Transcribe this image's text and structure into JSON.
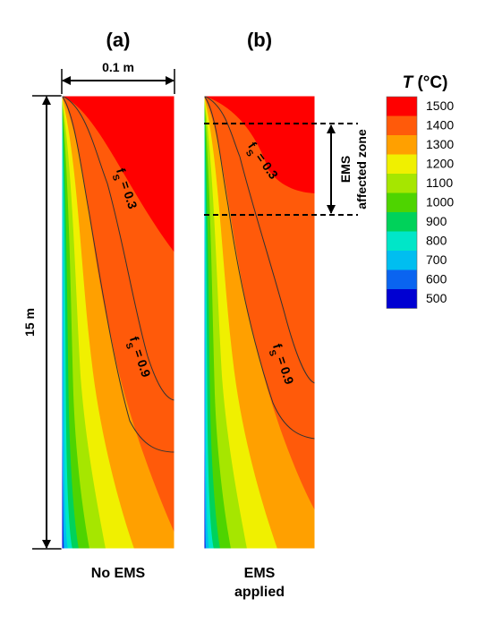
{
  "panels": [
    {
      "id": "a",
      "label": "(a)",
      "caption": [
        "No EMS"
      ]
    },
    {
      "id": "b",
      "label": "(b)",
      "caption": [
        "EMS",
        "applied"
      ]
    }
  ],
  "dimensions": {
    "width_label": "0.1 m",
    "height_label": "15 m"
  },
  "contours": {
    "fs_low": {
      "sym": "f",
      "sub": "S",
      "val": " = 0.3"
    },
    "fs_high": {
      "sym": "f",
      "sub": "S",
      "val": " = 0.9"
    }
  },
  "ems_zone": {
    "line1": "EMS",
    "line2": "affected zone"
  },
  "legend": {
    "title_sym": "T",
    "title_unit": " (°C)",
    "items": [
      {
        "label": "1500",
        "color": "#ff0000"
      },
      {
        "label": "1400",
        "color": "#ff5a0a"
      },
      {
        "label": "1300",
        "color": "#ffa000"
      },
      {
        "label": "1200",
        "color": "#f0f000"
      },
      {
        "label": "1100",
        "color": "#a6e600"
      },
      {
        "label": "1000",
        "color": "#4ed400"
      },
      {
        "label": "900",
        "color": "#00d25a"
      },
      {
        "label": "800",
        "color": "#00e6c8"
      },
      {
        "label": "700",
        "color": "#00bef0"
      },
      {
        "label": "600",
        "color": "#0a64f0"
      },
      {
        "label": "500",
        "color": "#0000d2"
      }
    ]
  }
}
